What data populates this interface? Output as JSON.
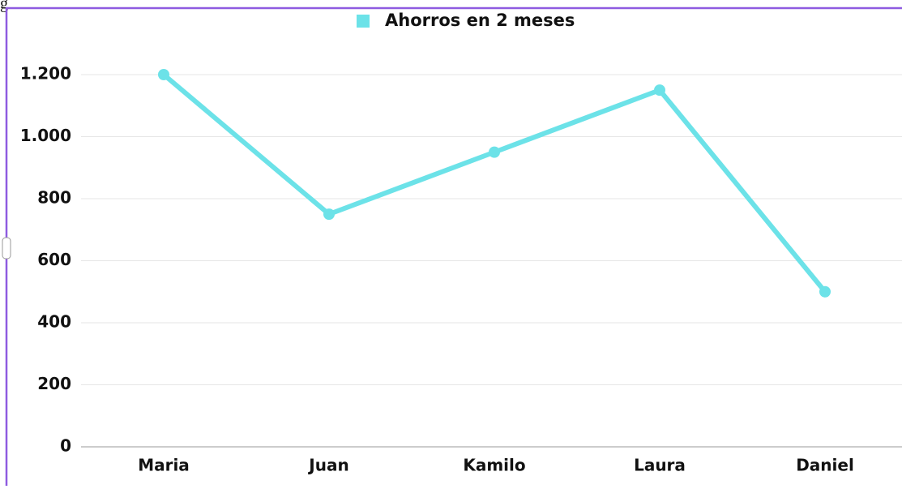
{
  "corner_text": "g",
  "chart_data": {
    "type": "line",
    "categories": [
      "Maria",
      "Juan",
      "Kamilo",
      "Laura",
      "Daniel"
    ],
    "series": [
      {
        "name": "Ahorros en 2 meses",
        "color": "#6ce2e8",
        "values": [
          1200,
          750,
          950,
          1150,
          500
        ]
      }
    ],
    "ylim": [
      0,
      1200
    ],
    "yticks": [
      0,
      200,
      400,
      600,
      800,
      {
        "value": 1000,
        "label": "1.000"
      },
      {
        "value": 1200,
        "label": "1.200"
      }
    ],
    "grid": true,
    "legend": "top"
  }
}
